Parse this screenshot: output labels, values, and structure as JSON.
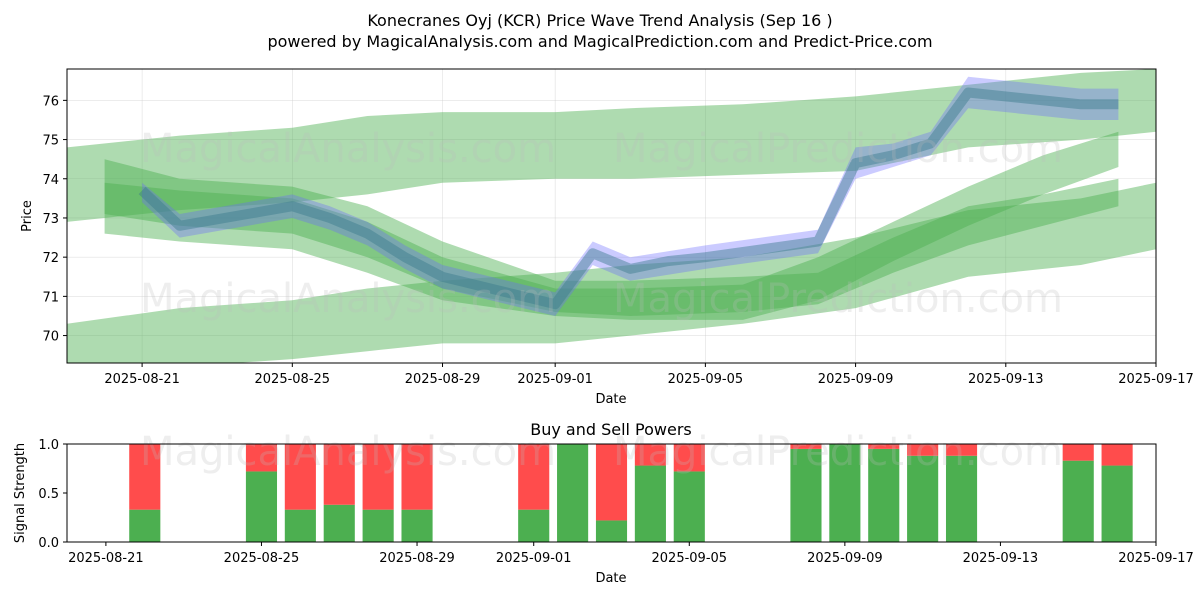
{
  "title_line1": "Konecranes Oyj (KCR) Price Wave Trend Analysis (Sep 16 )",
  "title_line2": "powered by MagicalAnalysis.com and MagicalPrediction.com and Predict-Price.com",
  "watermarks": [
    "MagicalAnalysis.com",
    "MagicalPrediction.com"
  ],
  "colors": {
    "band_green": "#4caf50",
    "band_blue": "#6a6aff",
    "buy": "#4caf50",
    "sell": "#ff4c4c",
    "grid": "#cccccc"
  },
  "chart_data": [
    {
      "type": "area",
      "title": "",
      "xlabel": "Date",
      "ylabel": "Price",
      "xlim": [
        "2025-08-19",
        "2025-09-17"
      ],
      "ylim": [
        69.3,
        76.8
      ],
      "grid": true,
      "x_ticks": [
        "2025-08-21",
        "2025-08-25",
        "2025-08-29",
        "2025-09-01",
        "2025-09-05",
        "2025-09-09",
        "2025-09-13",
        "2025-09-17"
      ],
      "y_ticks": [
        70,
        71,
        72,
        73,
        74,
        75,
        76
      ],
      "price_series": {
        "x": [
          "2025-08-21",
          "2025-08-22",
          "2025-08-25",
          "2025-08-26",
          "2025-08-27",
          "2025-08-28",
          "2025-08-29",
          "2025-09-01",
          "2025-09-02",
          "2025-09-03",
          "2025-09-04",
          "2025-09-05",
          "2025-09-08",
          "2025-09-09",
          "2025-09-10",
          "2025-09-11",
          "2025-09-12",
          "2025-09-15",
          "2025-09-16"
        ],
        "y": [
          73.7,
          72.8,
          73.3,
          73.0,
          72.6,
          72.0,
          71.5,
          70.8,
          72.1,
          71.7,
          71.9,
          72.0,
          72.4,
          74.4,
          74.6,
          74.9,
          76.2,
          75.9,
          75.9
        ]
      },
      "green_bands": [
        {
          "x": [
            "2025-08-19",
            "2025-08-22",
            "2025-08-25",
            "2025-08-27",
            "2025-08-29",
            "2025-09-01",
            "2025-09-03",
            "2025-09-06",
            "2025-09-09",
            "2025-09-12",
            "2025-09-15",
            "2025-09-17"
          ],
          "upper": [
            74.8,
            75.1,
            75.3,
            75.6,
            75.7,
            75.7,
            75.8,
            75.9,
            76.1,
            76.4,
            76.7,
            76.8
          ],
          "lower": [
            72.9,
            73.2,
            73.4,
            73.6,
            73.9,
            74.0,
            74.0,
            74.1,
            74.2,
            74.8,
            75.0,
            75.2
          ]
        },
        {
          "x": [
            "2025-08-19",
            "2025-08-22",
            "2025-08-25",
            "2025-08-27",
            "2025-08-29",
            "2025-09-01",
            "2025-09-03",
            "2025-09-06",
            "2025-09-09",
            "2025-09-12",
            "2025-09-15",
            "2025-09-17"
          ],
          "upper": [
            70.3,
            70.7,
            70.9,
            71.2,
            71.4,
            71.6,
            71.8,
            72.0,
            72.5,
            73.2,
            73.5,
            73.9
          ],
          "lower": [
            68.8,
            69.2,
            69.4,
            69.6,
            69.8,
            69.8,
            70.0,
            70.3,
            70.7,
            71.5,
            71.8,
            72.2
          ]
        },
        {
          "x": [
            "2025-08-20",
            "2025-08-22",
            "2025-08-25",
            "2025-08-27",
            "2025-08-29",
            "2025-09-01",
            "2025-09-03",
            "2025-09-06",
            "2025-09-08",
            "2025-09-10",
            "2025-09-12",
            "2025-09-14",
            "2025-09-16"
          ],
          "upper": [
            74.5,
            74.0,
            73.8,
            73.3,
            72.4,
            71.4,
            71.4,
            71.5,
            71.6,
            72.5,
            73.3,
            73.6,
            74.0
          ],
          "lower": [
            73.1,
            72.8,
            72.6,
            72.0,
            71.2,
            70.6,
            70.5,
            70.6,
            70.8,
            71.6,
            72.3,
            72.8,
            73.3
          ]
        },
        {
          "x": [
            "2025-08-20",
            "2025-08-22",
            "2025-08-25",
            "2025-08-27",
            "2025-08-29",
            "2025-09-01",
            "2025-09-03",
            "2025-09-06",
            "2025-09-08",
            "2025-09-10",
            "2025-09-12",
            "2025-09-14",
            "2025-09-16"
          ],
          "upper": [
            73.9,
            73.7,
            73.5,
            72.9,
            72.0,
            71.2,
            71.2,
            71.3,
            72.0,
            72.9,
            73.8,
            74.6,
            75.2
          ],
          "lower": [
            72.6,
            72.4,
            72.2,
            71.6,
            70.9,
            70.5,
            70.4,
            70.4,
            70.9,
            71.9,
            72.8,
            73.6,
            74.3
          ]
        }
      ],
      "blue_bands": [
        {
          "x": [
            "2025-08-21",
            "2025-08-22",
            "2025-08-25",
            "2025-08-26",
            "2025-08-27",
            "2025-08-28",
            "2025-08-29",
            "2025-09-01",
            "2025-09-02",
            "2025-09-03",
            "2025-09-05",
            "2025-09-08",
            "2025-09-09",
            "2025-09-10",
            "2025-09-11",
            "2025-09-12",
            "2025-09-15",
            "2025-09-16"
          ],
          "upper": [
            73.9,
            73.1,
            73.6,
            73.3,
            72.9,
            72.3,
            71.8,
            71.1,
            72.4,
            72.0,
            72.3,
            72.7,
            74.8,
            74.9,
            75.2,
            76.6,
            76.3,
            76.3
          ],
          "lower": [
            73.4,
            72.5,
            73.0,
            72.7,
            72.3,
            71.7,
            71.2,
            70.5,
            71.8,
            71.4,
            71.7,
            72.1,
            74.0,
            74.3,
            74.6,
            75.8,
            75.5,
            75.5
          ]
        }
      ]
    },
    {
      "type": "bar",
      "title": "Buy and Sell Powers",
      "xlabel": "Date",
      "ylabel": "Signal Strength",
      "xlim": [
        "2025-08-20",
        "2025-09-17"
      ],
      "ylim": [
        0,
        1.0
      ],
      "y_ticks": [
        0.0,
        0.5,
        1.0
      ],
      "x_ticks": [
        "2025-08-21",
        "2025-08-25",
        "2025-08-29",
        "2025-09-01",
        "2025-09-05",
        "2025-09-09",
        "2025-09-13",
        "2025-09-17"
      ],
      "categories": [
        "2025-08-22",
        "2025-08-25",
        "2025-08-26",
        "2025-08-27",
        "2025-08-28",
        "2025-08-29",
        "2025-09-01",
        "2025-09-02",
        "2025-09-03",
        "2025-09-04",
        "2025-09-05",
        "2025-09-08",
        "2025-09-09",
        "2025-09-10",
        "2025-09-11",
        "2025-09-12",
        "2025-09-15",
        "2025-09-16"
      ],
      "series": [
        {
          "values": [
            0.33,
            0.72,
            0.33,
            0.38,
            0.33,
            0.33,
            0.33,
            1.0,
            0.22,
            0.78,
            0.72,
            0.95,
            1.0,
            0.95,
            0.88,
            0.88,
            0.83,
            0.78
          ]
        },
        {
          "values": [
            0.67,
            0.28,
            0.67,
            0.62,
            0.67,
            0.67,
            0.67,
            0.0,
            0.78,
            0.22,
            0.28,
            0.05,
            0.0,
            0.05,
            0.12,
            0.12,
            0.17,
            0.22
          ]
        }
      ]
    }
  ]
}
